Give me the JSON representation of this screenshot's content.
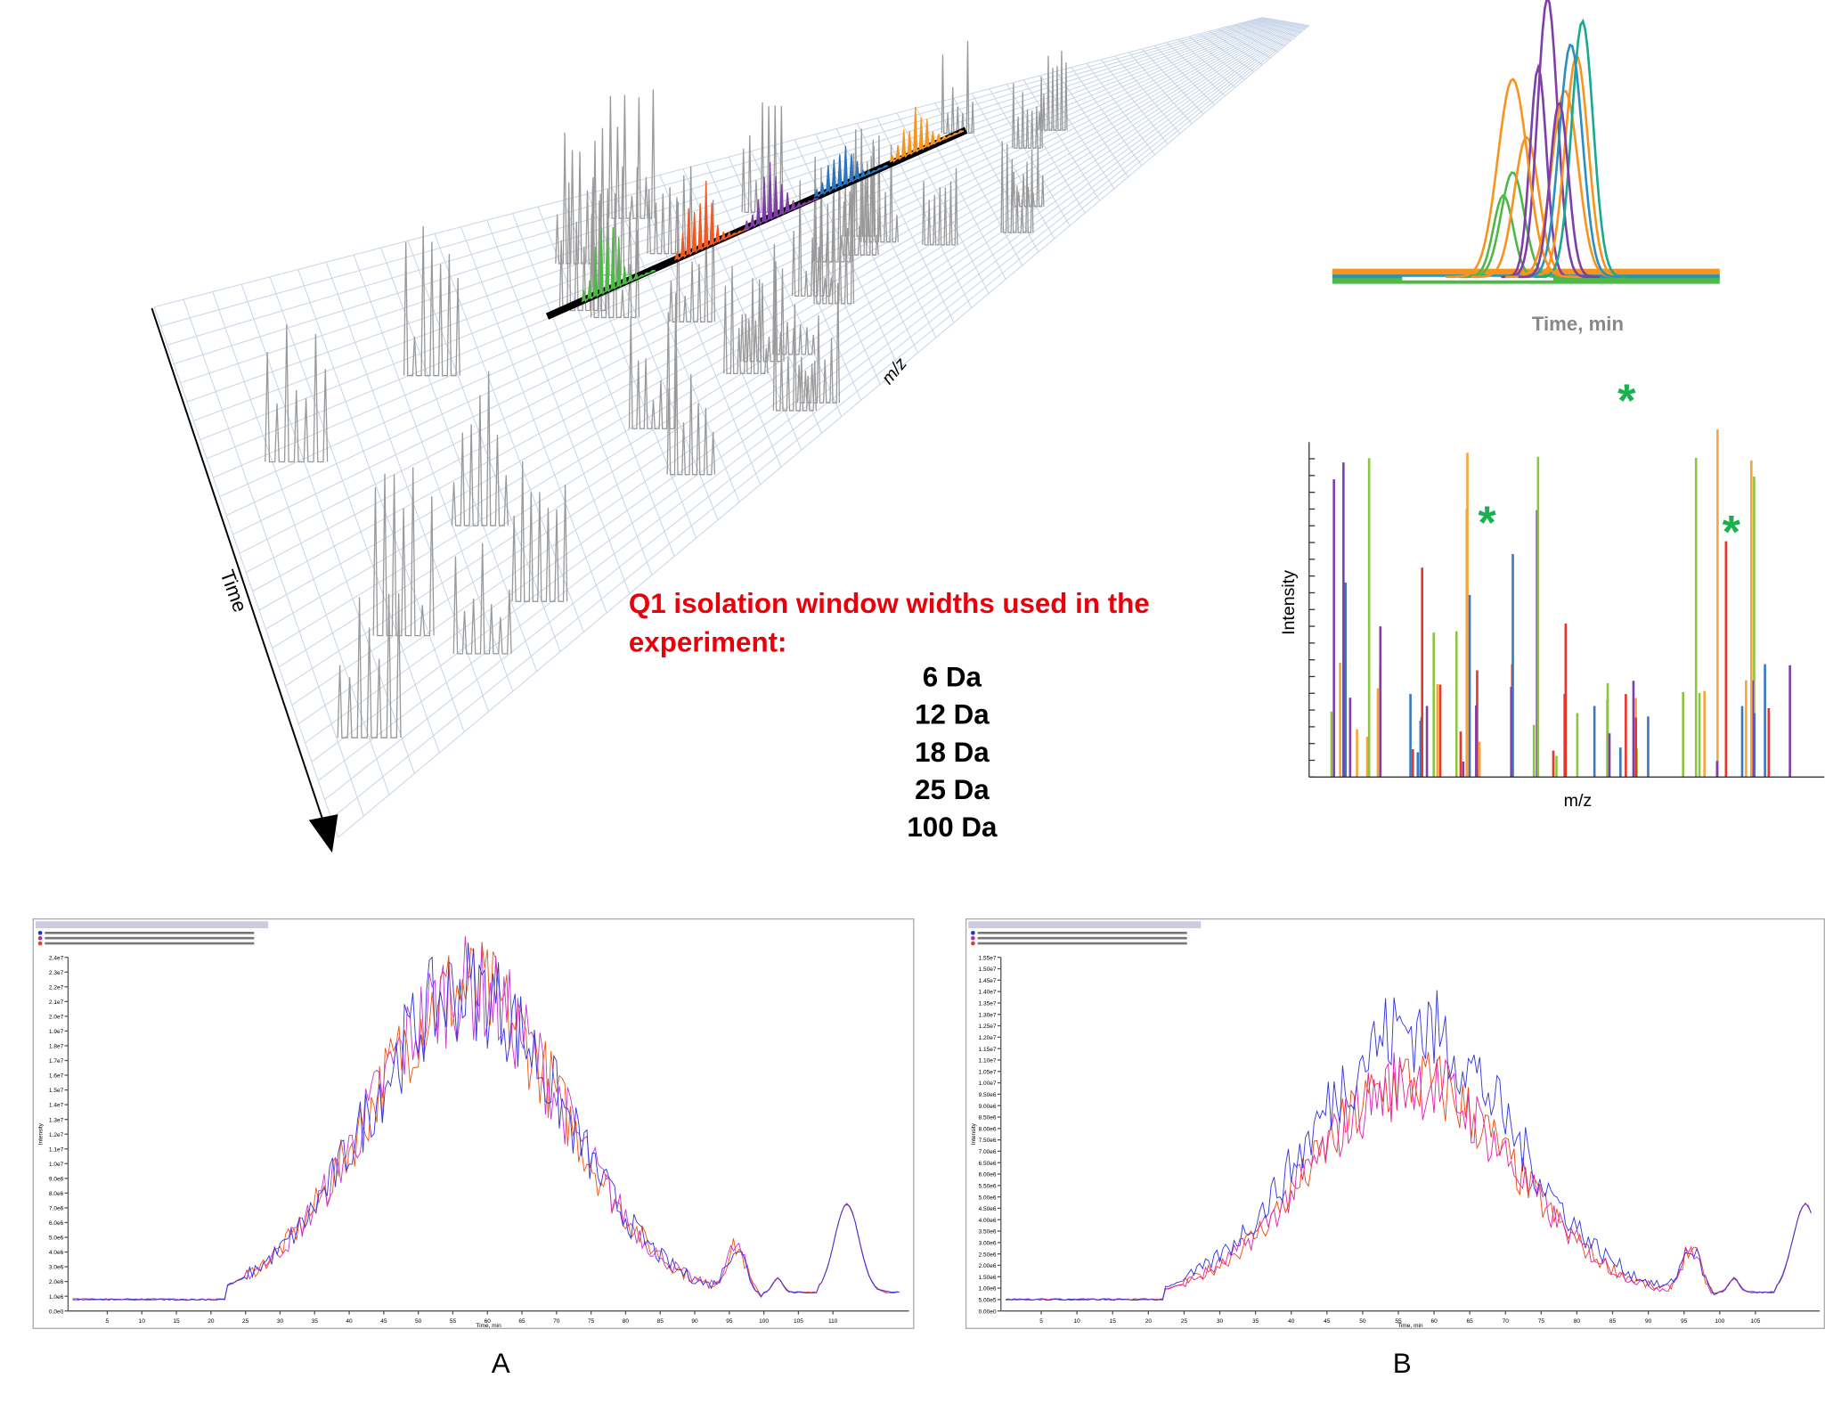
{
  "figure_3d": {
    "x_axis_label": "m/z",
    "time_axis_label": "Time"
  },
  "isolation_windows": {
    "heading_lines": [
      "Q1 isolation window widths used in the",
      "experiment:"
    ],
    "widths": [
      "6 Da",
      "12 Da",
      "18 Da",
      "25 Da",
      "100 Da"
    ]
  },
  "xic": {
    "x_axis_label": "Time, min"
  },
  "spectrum": {
    "y_axis_label": "Intensity",
    "x_axis_label": "m/z",
    "markers": [
      "*",
      "*",
      "*"
    ]
  },
  "panels": [
    {
      "label": "A",
      "x_axis_label": "Time, min",
      "y_axis_label": "Intensity",
      "xticks": [
        "5",
        "10",
        "15",
        "20",
        "25",
        "30",
        "35",
        "40",
        "45",
        "50",
        "55",
        "60",
        "65",
        "70",
        "75",
        "80",
        "85",
        "90",
        "95",
        "100",
        "105",
        "110"
      ],
      "yticks": [
        "2.4e7",
        "2.3e7",
        "2.2e7",
        "2.1e7",
        "2.0e7",
        "1.9e7",
        "1.8e7",
        "1.7e7",
        "1.6e7",
        "1.5e7",
        "1.4e7",
        "1.3e7",
        "1.2e7",
        "1.1e7",
        "1.0e7",
        "9.0e6",
        "8.0e6",
        "7.0e6",
        "6.0e6",
        "5.0e6",
        "4.0e6",
        "3.0e6",
        "2.0e6",
        "1.0e6",
        "0.0e0"
      ]
    },
    {
      "label": "B",
      "x_axis_label": "Time, min",
      "y_axis_label": "Intensity",
      "xticks": [
        "5",
        "10",
        "15",
        "20",
        "25",
        "30",
        "35",
        "40",
        "45",
        "50",
        "55",
        "60",
        "65",
        "70",
        "75",
        "80",
        "85",
        "90",
        "95",
        "100",
        "105"
      ],
      "yticks": [
        "1.55e7",
        "1.50e7",
        "1.45e7",
        "1.40e7",
        "1.35e7",
        "1.30e7",
        "1.25e7",
        "1.20e7",
        "1.15e7",
        "1.10e7",
        "1.05e7",
        "1.00e7",
        "9.50e6",
        "9.00e6",
        "8.50e6",
        "8.00e6",
        "7.50e6",
        "7.00e6",
        "6.50e6",
        "6.00e6",
        "5.50e6",
        "5.00e6",
        "4.50e6",
        "4.00e6",
        "3.50e6",
        "3.00e6",
        "2.50e6",
        "2.00e6",
        "1.50e6",
        "1.00e6",
        "5.00e5",
        "0.00e0"
      ]
    }
  ]
}
